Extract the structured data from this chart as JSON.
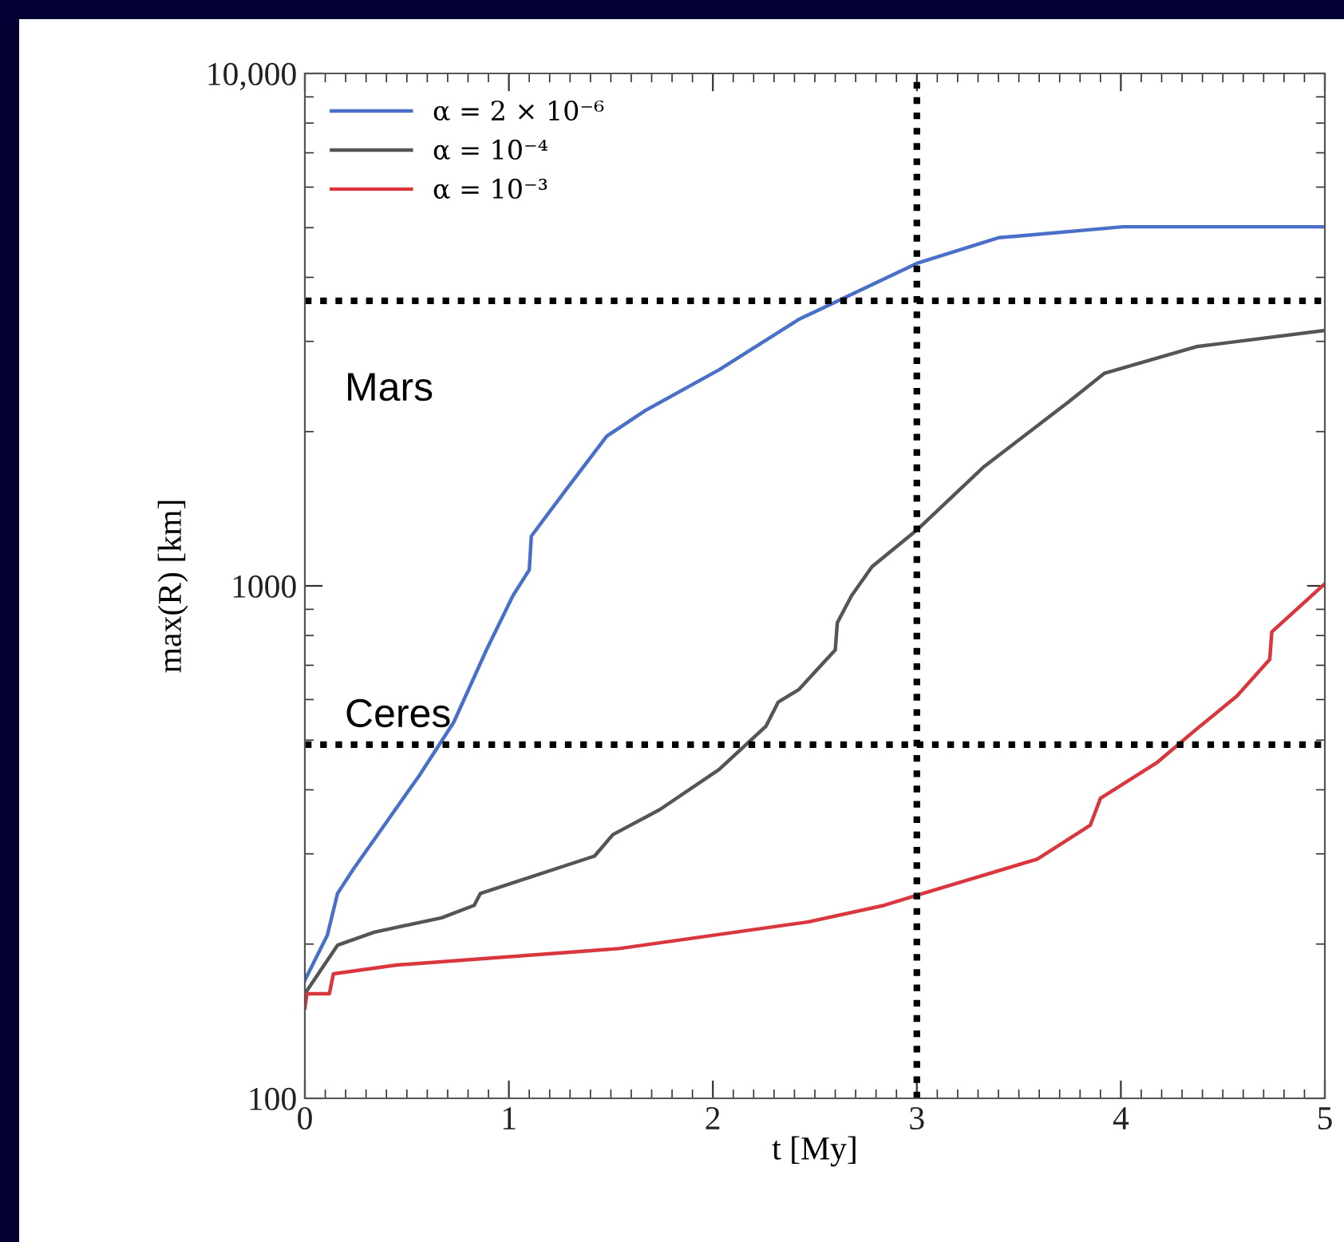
{
  "chart_data": {
    "type": "line",
    "xlabel": "t [My]",
    "ylabel": "max(R) [km]",
    "log": "y",
    "xlim": [
      0,
      5
    ],
    "xticks": [
      0,
      1,
      2,
      3,
      4,
      5
    ],
    "ylim": [
      100,
      10000
    ],
    "yticks": [
      100,
      1000,
      {
        "value": 10000,
        "label": "10,000"
      }
    ],
    "grid": false,
    "legend": "top left",
    "line_style": "solid",
    "marker": "none",
    "series": [
      {
        "name": "α = 2 × 10⁻⁶",
        "color": "#4a6fc9",
        "x": [
          0,
          0.11,
          0.16,
          0.24,
          0.4,
          0.56,
          0.73,
          0.89,
          1.02,
          1.1,
          1.11,
          1.28,
          1.48,
          1.67,
          2.03,
          2.42,
          3.0,
          3.4,
          4.01,
          5.0
        ],
        "values": [
          170,
          208,
          251,
          281,
          346,
          426,
          542,
          750,
          957,
          1075,
          1250,
          1540,
          1960,
          2200,
          2640,
          3310,
          4260,
          4780,
          5020,
          5020
        ]
      },
      {
        "name": "α = 10⁻⁴",
        "color": "#555555",
        "x": [
          0,
          0.16,
          0.34,
          0.67,
          0.83,
          0.86,
          1.42,
          1.51,
          1.74,
          2.03,
          2.26,
          2.32,
          2.42,
          2.6,
          2.61,
          2.68,
          2.78,
          3.0,
          3.33,
          3.74,
          3.92,
          4.37,
          5.0
        ],
        "values": [
          160,
          199,
          211,
          225,
          238,
          251,
          297,
          327,
          366,
          438,
          532,
          593,
          627,
          750,
          847,
          957,
          1090,
          1285,
          1710,
          2280,
          2600,
          2930,
          3150
        ]
      },
      {
        "name": "α = 10⁻³",
        "color": "#d9363e",
        "x": [
          0,
          0.01,
          0.12,
          0.14,
          0.45,
          1.54,
          2.47,
          2.84,
          3.0,
          3.59,
          3.72,
          3.85,
          3.9,
          4.18,
          4.37,
          4.57,
          4.73,
          4.74,
          5.0
        ],
        "values": [
          150,
          160,
          160,
          175,
          182,
          196,
          221,
          238,
          249,
          293,
          316,
          341,
          385,
          453,
          525,
          610,
          719,
          813,
          1010
        ]
      }
    ],
    "ref_lines": [
      {
        "axis": "y",
        "value": 3600,
        "label": "Mars",
        "color": "#000000",
        "line_style": "dotted"
      },
      {
        "axis": "y",
        "value": 490,
        "label": "Ceres",
        "color": "#000000",
        "line_style": "dotted"
      },
      {
        "axis": "x",
        "value": 3,
        "color": "#000000",
        "line_style": "dotted"
      }
    ]
  }
}
